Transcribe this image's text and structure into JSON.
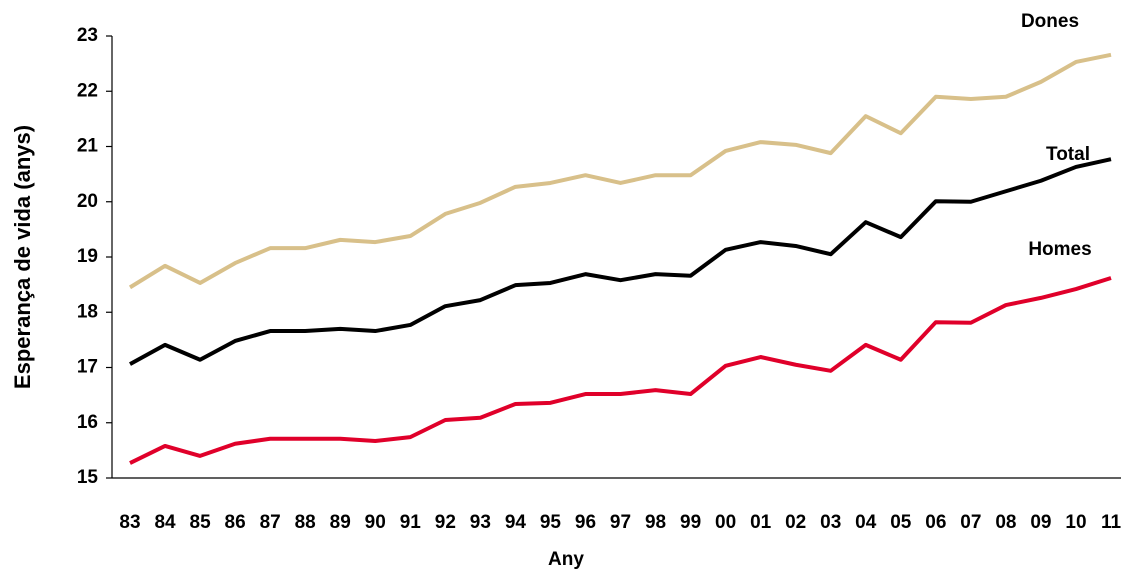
{
  "chart_data": {
    "type": "line",
    "x_label": "Any",
    "y_label": "Esperança de vida (anys)",
    "categories": [
      "83",
      "84",
      "85",
      "86",
      "87",
      "88",
      "89",
      "90",
      "91",
      "92",
      "93",
      "94",
      "95",
      "96",
      "97",
      "98",
      "99",
      "00",
      "01",
      "02",
      "03",
      "04",
      "05",
      "06",
      "07",
      "08",
      "09",
      "10",
      "11"
    ],
    "ylim": [
      15,
      23
    ],
    "yticks": [
      15,
      16,
      17,
      18,
      19,
      20,
      21,
      22,
      23
    ],
    "grid": false,
    "series": [
      {
        "name": "Dones",
        "color": "#d8c08a",
        "values": [
          18.45,
          18.84,
          18.53,
          18.89,
          19.16,
          19.16,
          19.31,
          19.27,
          19.38,
          19.78,
          19.98,
          20.27,
          20.34,
          20.48,
          20.34,
          20.48,
          20.48,
          20.92,
          21.08,
          21.03,
          20.88,
          21.55,
          21.24,
          21.9,
          21.86,
          21.9,
          22.17,
          22.53,
          22.66
        ]
      },
      {
        "name": "Total",
        "color": "#000000",
        "values": [
          17.06,
          17.41,
          17.14,
          17.48,
          17.66,
          17.66,
          17.7,
          17.66,
          17.77,
          18.11,
          18.22,
          18.49,
          18.53,
          18.69,
          18.58,
          18.69,
          18.66,
          19.13,
          19.27,
          19.2,
          19.05,
          19.63,
          19.36,
          20.01,
          20.0,
          20.19,
          20.38,
          20.63,
          20.77
        ]
      },
      {
        "name": "Homes",
        "color": "#e0002a",
        "values": [
          15.27,
          15.58,
          15.4,
          15.62,
          15.71,
          15.71,
          15.71,
          15.67,
          15.74,
          16.05,
          16.09,
          16.34,
          16.36,
          16.52,
          16.52,
          16.59,
          16.52,
          17.03,
          17.19,
          17.05,
          16.94,
          17.41,
          17.14,
          17.82,
          17.81,
          18.13,
          18.26,
          18.42,
          18.62
        ]
      }
    ]
  }
}
